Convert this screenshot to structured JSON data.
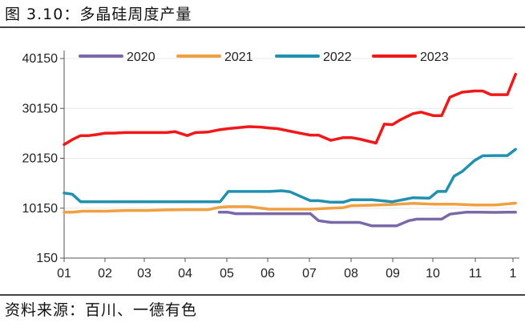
{
  "header": {
    "title": "图 3.10：多晶硅周度产量"
  },
  "footer": {
    "source": "资料来源：百川、一德有色"
  },
  "chart_data": {
    "type": "line",
    "title": "多晶硅周度产量",
    "xlabel": "",
    "ylabel": "",
    "ylim": [
      150,
      40150
    ],
    "xlim": [
      1,
      12.1
    ],
    "yticks": [
      "150",
      "10150",
      "20150",
      "30150",
      "40150"
    ],
    "xticks": [
      "01",
      "02",
      "03",
      "04",
      "05",
      "06",
      "07",
      "08",
      "09",
      "10",
      "11",
      "1"
    ],
    "legend_position": "top",
    "series": [
      {
        "name": "2020",
        "color": "#7B68A8",
        "x": [
          4.78,
          4.98,
          5.18,
          5.58,
          6.0,
          6.5,
          7.0,
          7.2,
          7.5,
          7.9,
          8.2,
          8.5,
          8.8,
          9.1,
          9.4,
          9.6,
          9.9,
          10.2,
          10.4,
          10.8,
          11.1,
          11.5,
          11.8,
          12.0
        ],
        "values": [
          9350,
          9350,
          9050,
          9050,
          9050,
          9050,
          9050,
          7650,
          7300,
          7300,
          7300,
          6600,
          6600,
          6600,
          7650,
          7950,
          7950,
          7950,
          8950,
          9350,
          9350,
          9300,
          9350,
          9350
        ]
      },
      {
        "name": "2021",
        "color": "#F0A040",
        "x": [
          1.0,
          1.2,
          1.45,
          1.7,
          2.0,
          2.5,
          3.0,
          3.5,
          4.0,
          4.5,
          4.78,
          5.0,
          5.5,
          6.0,
          6.5,
          7.0,
          7.5,
          7.8,
          8.0,
          8.5,
          9.0,
          9.5,
          10.0,
          10.5,
          11.0,
          11.5,
          12.0
        ],
        "values": [
          9350,
          9350,
          9550,
          9550,
          9550,
          9700,
          9700,
          9800,
          9850,
          9850,
          10300,
          10450,
          10450,
          9950,
          9950,
          9950,
          10150,
          10250,
          10650,
          10750,
          10900,
          11100,
          10950,
          10950,
          10800,
          10800,
          11150
        ]
      },
      {
        "name": "2022",
        "color": "#2091B0",
        "x": [
          1.0,
          1.2,
          1.4,
          1.7,
          2.0,
          2.5,
          3.0,
          3.5,
          4.0,
          4.5,
          4.8,
          5.0,
          5.5,
          6.0,
          6.3,
          6.5,
          7.0,
          7.2,
          7.5,
          7.8,
          8.0,
          8.5,
          9.0,
          9.5,
          9.9,
          10.1,
          10.3,
          10.5,
          10.7,
          11.0,
          11.2,
          11.5,
          11.8,
          12.0
        ],
        "values": [
          13200,
          12950,
          11450,
          11450,
          11450,
          11450,
          11450,
          11450,
          11450,
          11450,
          11450,
          13500,
          13500,
          13500,
          13650,
          13450,
          11650,
          11650,
          11350,
          11350,
          11850,
          11850,
          11450,
          12250,
          12150,
          13500,
          13500,
          16550,
          17500,
          19700,
          20650,
          20700,
          20700,
          21950
        ]
      },
      {
        "name": "2023",
        "color": "#F01818",
        "x": [
          1.0,
          1.2,
          1.4,
          1.6,
          1.8,
          2.0,
          2.2,
          2.5,
          3.0,
          3.5,
          3.7,
          4.0,
          4.2,
          4.5,
          4.8,
          5.0,
          5.5,
          5.8,
          6.0,
          6.2,
          6.5,
          6.8,
          7.0,
          7.2,
          7.5,
          7.8,
          8.0,
          8.2,
          8.4,
          8.6,
          8.8,
          9.0,
          9.2,
          9.5,
          9.7,
          10.0,
          10.2,
          10.4,
          10.7,
          11.0,
          11.2,
          11.4,
          11.6,
          11.8,
          12.0
        ],
        "values": [
          22900,
          23900,
          24700,
          24700,
          24900,
          25200,
          25200,
          25300,
          25300,
          25300,
          25500,
          24700,
          25300,
          25400,
          25900,
          26100,
          26500,
          26400,
          26200,
          26100,
          25600,
          25100,
          24800,
          24800,
          23750,
          24300,
          24300,
          24000,
          23600,
          23200,
          27000,
          26900,
          27900,
          29100,
          29400,
          28700,
          28700,
          32400,
          33400,
          33650,
          33650,
          32900,
          32900,
          32900,
          37000
        ]
      }
    ]
  }
}
